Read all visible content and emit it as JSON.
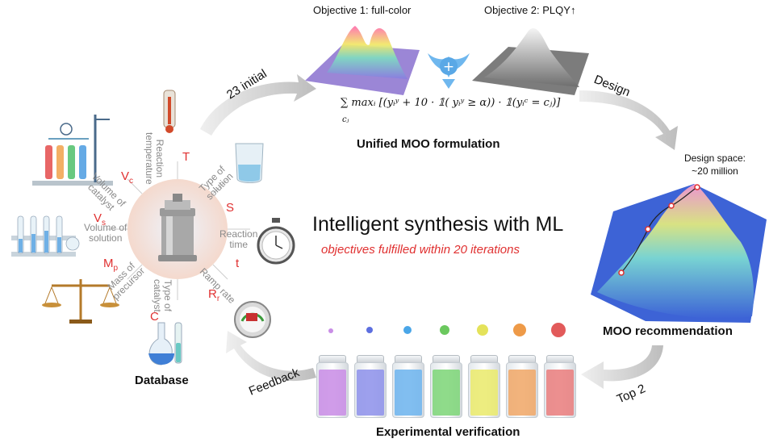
{
  "objectives": {
    "obj1": "Objective 1: full-color",
    "obj2": "Objective 2: PLQY↑"
  },
  "formula": "∑ maxᵢ [(yᵢʸ + 10 · 𝟙( yᵢʸ ≥ α)) · 𝟙(yᵢᶜ = cⱼ)]",
  "formula_sub": "cⱼ",
  "unified_label": "Unified MOO formulation",
  "design_space": {
    "line1": "Design space:",
    "line2": "~20 million"
  },
  "main_title": "Intelligent synthesis with ML",
  "sub_title": "objectives fulfilled within 20 iterations",
  "moo_label": "MOO recommendation",
  "experimental_label": "Experimental verification",
  "database_label": "Database",
  "arrows": {
    "initial": "23 initial",
    "design": "Design",
    "top2": "Top 2",
    "feedback": "Feedback"
  },
  "params": [
    {
      "label": "Reaction temperature",
      "line1": "Reaction",
      "line2": "temperature",
      "symbol": "T",
      "sub": ""
    },
    {
      "label": "Type of solution",
      "line1": "Type of",
      "line2": "solution",
      "symbol": "S",
      "sub": ""
    },
    {
      "label": "Reaction time",
      "line1": "Reaction",
      "line2": "time",
      "symbol": "t",
      "sub": ""
    },
    {
      "label": "Ramp rate",
      "line1": "Ramp rate",
      "line2": "",
      "symbol": "R",
      "sub": "r"
    },
    {
      "label": "Type of catalyst",
      "line1": "Type of",
      "line2": "catalyst",
      "symbol": "C",
      "sub": ""
    },
    {
      "label": "Mass of precursor",
      "line1": "Mass of",
      "line2": "precursor",
      "symbol": "M",
      "sub": "p"
    },
    {
      "label": "Volume of solution",
      "line1": "Volume of",
      "line2": "solution",
      "symbol": "V",
      "sub": "s"
    },
    {
      "label": "Volume of catalyst",
      "line1": "Volume of",
      "line2": "catalyst",
      "symbol": "V",
      "sub": "c"
    }
  ],
  "vial_colors": [
    "#c98ee6",
    "#8f93ea",
    "#6fb5ee",
    "#7fd67a",
    "#eaea6e",
    "#f0a86a",
    "#e98080"
  ],
  "icons": [
    "thermometer-icon",
    "beaker-icon",
    "stopwatch-icon",
    "gauge-icon",
    "flask-icon",
    "balance-scale-icon",
    "test-tube-rack-icon",
    "distillation-apparatus-icon",
    "autoclave-icon"
  ],
  "accent": "#e03030"
}
